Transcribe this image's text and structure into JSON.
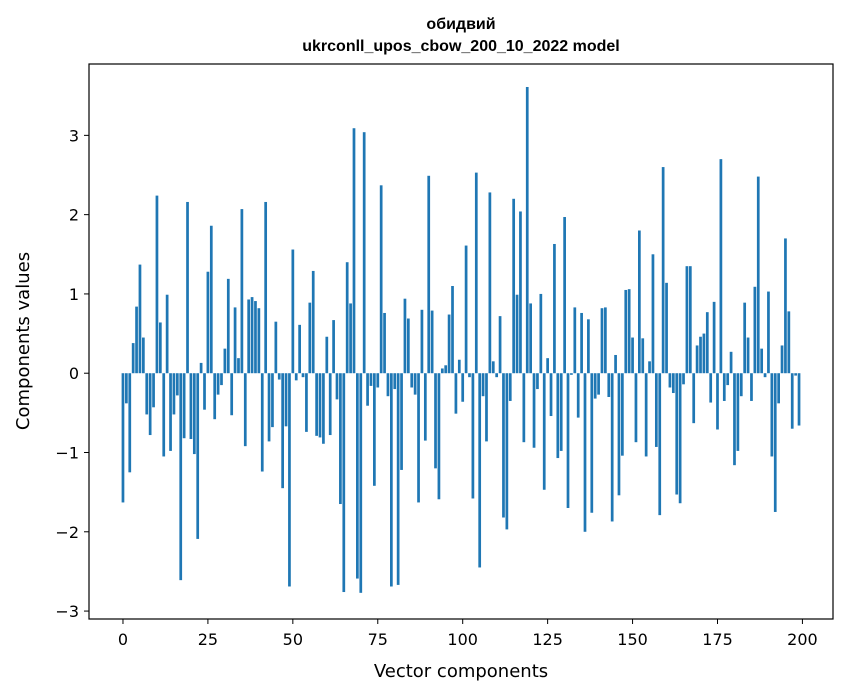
{
  "chart_data": {
    "type": "bar",
    "title": "обидвий",
    "subtitle": "ukrconll_upos_cbow_200_10_2022 model",
    "xlabel": "Vector components",
    "ylabel": "Components values",
    "xlim": [
      -10,
      209
    ],
    "ylim": [
      -3.1,
      3.9
    ],
    "xticks": [
      0,
      25,
      50,
      75,
      100,
      125,
      150,
      175,
      200
    ],
    "yticks": [
      -3,
      -2,
      -1,
      0,
      1,
      2,
      3
    ],
    "bar_color": "#1f77b4",
    "grid": false,
    "legend": "none",
    "values": [
      -1.63,
      -0.38,
      -1.25,
      0.38,
      0.84,
      1.37,
      0.45,
      -0.52,
      -0.78,
      -0.43,
      2.24,
      0.64,
      -1.05,
      0.99,
      -0.98,
      -0.52,
      -0.28,
      -2.61,
      -0.82,
      2.16,
      -0.83,
      -1.02,
      -2.09,
      0.13,
      -0.46,
      1.28,
      1.86,
      -0.58,
      -0.27,
      -0.15,
      0.31,
      1.19,
      -0.53,
      0.83,
      0.19,
      2.07,
      -0.92,
      0.93,
      0.96,
      0.91,
      0.82,
      -1.24,
      2.16,
      -0.86,
      -0.68,
      0.65,
      -0.08,
      -1.45,
      -0.67,
      -2.69,
      1.56,
      -0.09,
      0.61,
      -0.05,
      -0.74,
      0.89,
      1.29,
      -0.79,
      -0.81,
      -0.89,
      0.46,
      -0.78,
      0.67,
      -0.33,
      -1.65,
      -2.76,
      1.4,
      0.88,
      3.09,
      -2.59,
      -2.77,
      3.04,
      -0.41,
      -0.16,
      -1.42,
      -0.18,
      2.37,
      0.76,
      -0.29,
      -2.69,
      -0.2,
      -2.67,
      -1.22,
      0.94,
      0.69,
      -0.18,
      -0.27,
      -1.63,
      0.8,
      -0.85,
      2.49,
      0.79,
      -1.2,
      -1.59,
      0.06,
      0.1,
      0.74,
      1.1,
      -0.51,
      0.17,
      -0.36,
      1.61,
      -0.05,
      -1.58,
      2.53,
      -2.45,
      -0.29,
      -0.86,
      2.28,
      0.15,
      -0.05,
      0.72,
      -1.82,
      -1.97,
      -0.35,
      2.2,
      0.99,
      2.04,
      -0.87,
      3.61,
      0.88,
      -0.94,
      -0.2,
      1.0,
      -1.47,
      0.19,
      -0.54,
      1.63,
      -1.07,
      -0.98,
      1.97,
      -1.7,
      -0.02,
      0.83,
      -0.56,
      0.76,
      -2.0,
      0.68,
      -1.76,
      -0.32,
      -0.27,
      0.82,
      0.83,
      -0.3,
      -1.87,
      0.23,
      -1.54,
      -1.04,
      1.05,
      1.06,
      0.45,
      -0.87,
      1.8,
      0.44,
      -1.05,
      0.15,
      1.5,
      -0.93,
      -1.79,
      2.6,
      1.14,
      -0.18,
      -0.25,
      -1.53,
      -1.64,
      -0.14,
      1.35,
      1.35,
      -0.63,
      0.35,
      0.46,
      0.5,
      0.77,
      -0.37,
      0.9,
      -0.71,
      2.7,
      -0.35,
      -0.15,
      0.27,
      -1.16,
      -0.98,
      -0.29,
      0.89,
      0.45,
      -0.35,
      1.09,
      2.48,
      0.31,
      -0.05,
      1.03,
      -1.05,
      -1.75,
      -0.38,
      0.35,
      1.7,
      0.78,
      -0.7,
      -0.03,
      -0.66
    ]
  }
}
